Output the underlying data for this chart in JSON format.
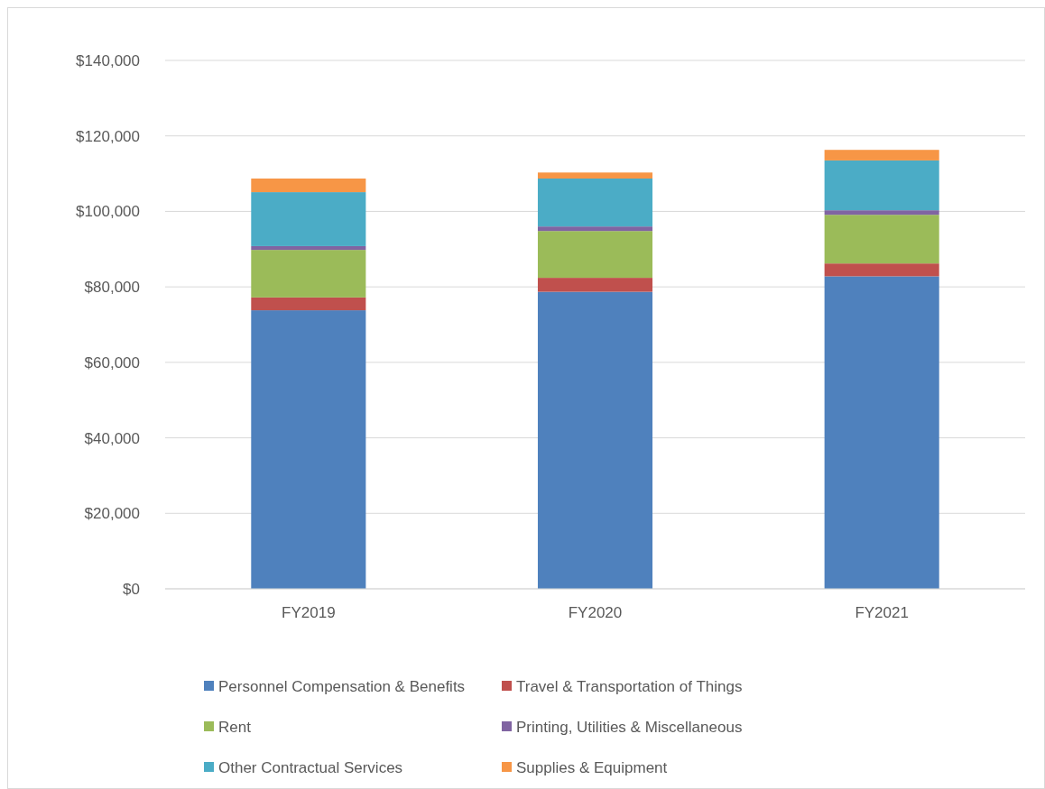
{
  "chart_data": {
    "type": "bar",
    "stacked": true,
    "categories": [
      "FY2019",
      "FY2020",
      "FY2021"
    ],
    "series": [
      {
        "name": "Personnel Compensation & Benefits",
        "color": "#4f81bd",
        "values": [
          73800,
          78700,
          82800
        ]
      },
      {
        "name": "Travel & Transportation of Things",
        "color": "#c0504d",
        "values": [
          3400,
          3700,
          3400
        ]
      },
      {
        "name": "Rent",
        "color": "#9bbb59",
        "values": [
          12600,
          12400,
          12900
        ]
      },
      {
        "name": "Printing, Utilities & Miscellaneous",
        "color": "#8064a2",
        "values": [
          1000,
          1200,
          1200
        ]
      },
      {
        "name": "Other Contractual Services",
        "color": "#4bacc6",
        "values": [
          14300,
          12700,
          13200
        ]
      },
      {
        "name": "Supplies & Equipment",
        "color": "#f79646",
        "values": [
          3600,
          1600,
          2800
        ]
      }
    ],
    "ylim": [
      0,
      140000
    ],
    "yticks": [
      {
        "value": 0,
        "label": "$0"
      },
      {
        "value": 20000,
        "label": "$20,000"
      },
      {
        "value": 40000,
        "label": "$40,000"
      },
      {
        "value": 60000,
        "label": "$60,000"
      },
      {
        "value": 80000,
        "label": "$80,000"
      },
      {
        "value": 100000,
        "label": "$100,000"
      },
      {
        "value": 120000,
        "label": "$120,000"
      },
      {
        "value": 140000,
        "label": "$140,000"
      }
    ],
    "grid": "y",
    "legend": "bottom"
  }
}
